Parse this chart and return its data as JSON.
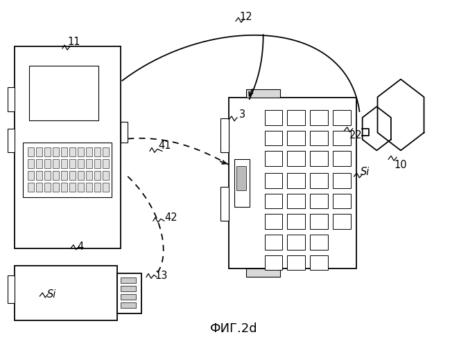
{
  "title": "ФИГ.2d",
  "bg_color": "#ffffff",
  "line_color": "#000000",
  "lw": 1.3,
  "tlw": 0.8
}
